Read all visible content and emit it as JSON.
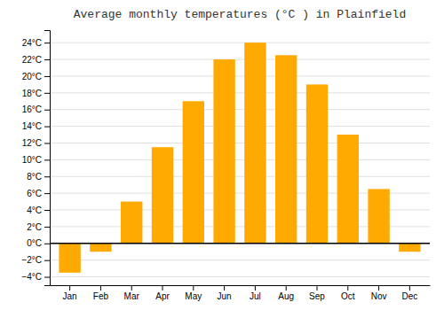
{
  "chart_data": {
    "type": "bar",
    "title": "Average monthly temperatures (°C ) in Plainfield",
    "categories": [
      "Jan",
      "Feb",
      "Mar",
      "Apr",
      "May",
      "Jun",
      "Jul",
      "Aug",
      "Sep",
      "Oct",
      "Nov",
      "Dec"
    ],
    "values": [
      -3.5,
      -1.0,
      5.0,
      11.5,
      17.0,
      22.0,
      24.0,
      22.5,
      19.0,
      13.0,
      6.5,
      -1.0
    ],
    "color": "#FFAA00",
    "ylim": [
      -5,
      25.5
    ],
    "yticks": [
      {
        "value": -4,
        "label": "−4°C"
      },
      {
        "value": -2,
        "label": "−2°C"
      },
      {
        "value": 0,
        "label": "0°C"
      },
      {
        "value": 2,
        "label": "2°C"
      },
      {
        "value": 4,
        "label": "4°C"
      },
      {
        "value": 6,
        "label": "6°C"
      },
      {
        "value": 8,
        "label": "8°C"
      },
      {
        "value": 10,
        "label": "10°C"
      },
      {
        "value": 12,
        "label": "12°C"
      },
      {
        "value": 14,
        "label": "14°C"
      },
      {
        "value": 16,
        "label": "16°C"
      },
      {
        "value": 18,
        "label": "18°C"
      },
      {
        "value": 20,
        "label": "20°C"
      },
      {
        "value": 22,
        "label": "22°C"
      },
      {
        "value": 24,
        "label": "24°C"
      }
    ],
    "grid": true
  }
}
